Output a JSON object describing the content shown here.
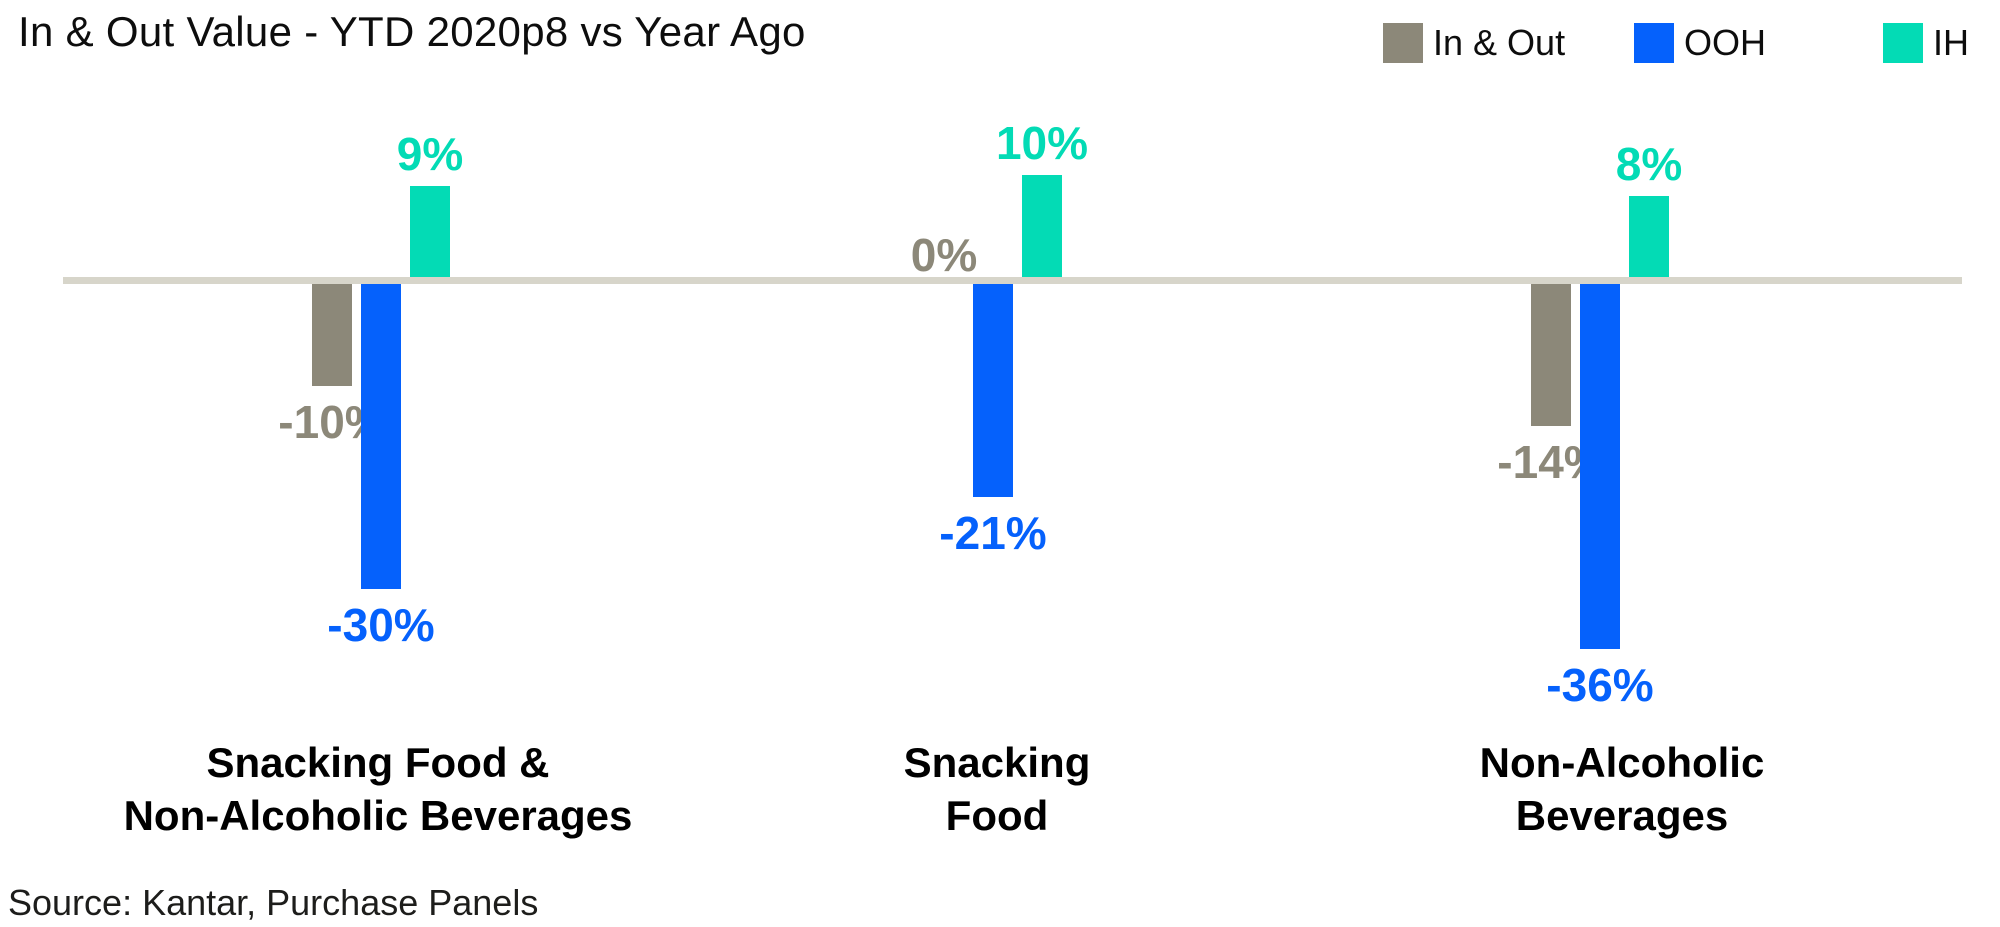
{
  "title": "In & Out Value - YTD 2020p8 vs Year Ago",
  "source": "Source: Kantar, Purchase Panels",
  "legend": [
    {
      "name": "In & Out",
      "color": "#8C8879"
    },
    {
      "name": "OOH",
      "color": "#0561FC"
    },
    {
      "name": "IH",
      "color": "#03DBB5"
    }
  ],
  "chart_data": {
    "type": "bar",
    "title": "In & Out Value - YTD 2020p8 vs Year Ago",
    "unit": "percent change vs year ago",
    "baseline": 0,
    "gridlines": false,
    "legend_position": "top-right",
    "axis_color": "#D7D5CA",
    "categories": [
      "Snacking Food & Non-Alcoholic Beverages",
      "Snacking Food",
      "Non-Alcoholic Beverages"
    ],
    "category_label_lines": [
      [
        "Snacking Food &",
        "Non-Alcoholic Beverages"
      ],
      [
        "Snacking",
        "Food"
      ],
      [
        "Non-Alcoholic",
        "Beverages"
      ]
    ],
    "series": [
      {
        "name": "In & Out",
        "color": "#8C8879",
        "values": [
          -10,
          0,
          -14
        ],
        "labels": [
          "-10%",
          "0%",
          "-14%"
        ]
      },
      {
        "name": "OOH",
        "color": "#0561FC",
        "values": [
          -30,
          -21,
          -36
        ],
        "labels": [
          "-30%",
          "-21%",
          "-36%"
        ]
      },
      {
        "name": "IH",
        "color": "#03DBB5",
        "values": [
          9,
          10,
          8
        ],
        "labels": [
          "9%",
          "10%",
          "8%"
        ]
      }
    ]
  }
}
